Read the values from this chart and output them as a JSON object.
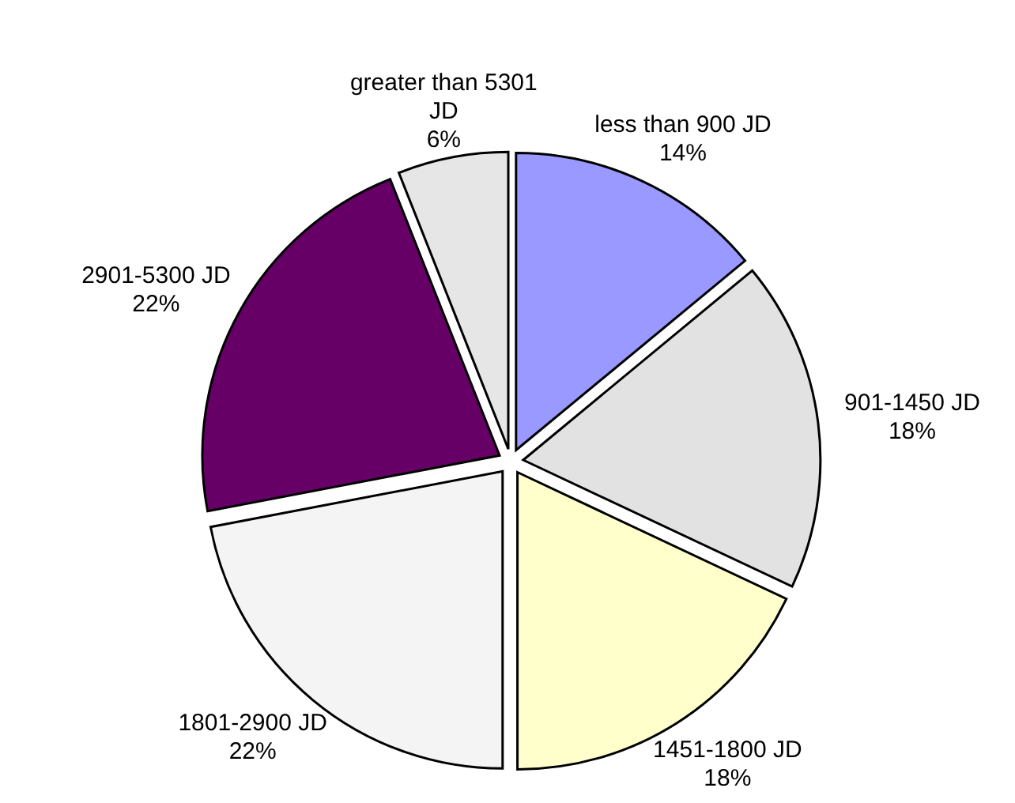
{
  "chart_data": {
    "type": "pie",
    "categories": [
      "less than 900 JD",
      "901-1450 JD",
      "1451-1800 JD",
      "1801-2900 JD",
      "2901-5300 JD",
      "greater than 5301 JD"
    ],
    "values": [
      14,
      18,
      18,
      22,
      22,
      6
    ],
    "value_labels": [
      "14%",
      "18%",
      "18%",
      "22%",
      "22%",
      "6%"
    ],
    "colors": [
      "#9999ff",
      "#e2e2e2",
      "#ffffcc",
      "#f4f4f4",
      "#660066",
      "#e6e6e6"
    ],
    "legend": false
  }
}
